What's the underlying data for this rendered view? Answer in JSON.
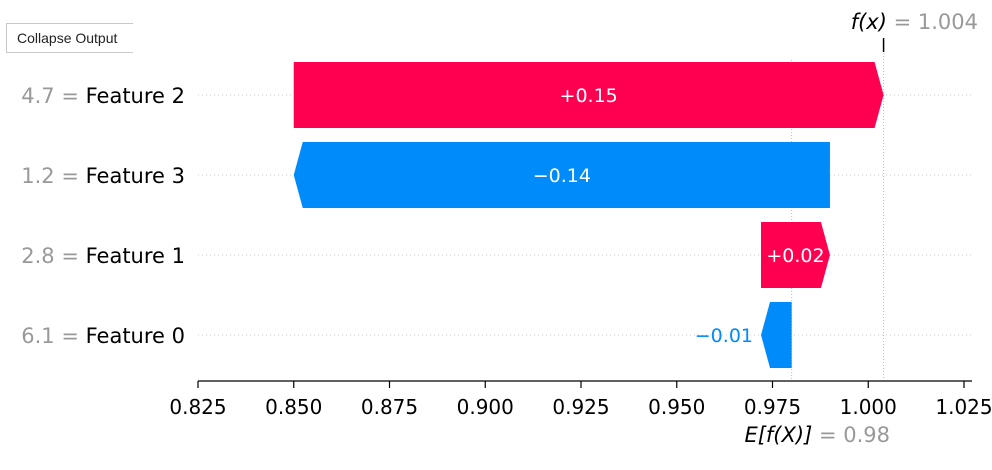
{
  "controls": {
    "collapse_label": "Collapse Output"
  },
  "colors": {
    "positive": "#ff0051",
    "negative": "#008bfb",
    "muted": "#999999",
    "text": "#000000"
  },
  "chart_data": {
    "type": "waterfall",
    "fx_symbol": "f(x)",
    "fx_value": "1.004",
    "ex_symbol": "E[f(X)]",
    "ex_value": "0.98",
    "base_value": 0.98,
    "output_value": 1.004,
    "xlim": [
      0.82,
      1.03
    ],
    "ticks": [
      {
        "value": 0.825,
        "label": "0.825"
      },
      {
        "value": 0.85,
        "label": "0.850"
      },
      {
        "value": 0.875,
        "label": "0.875"
      },
      {
        "value": 0.9,
        "label": "0.900"
      },
      {
        "value": 0.925,
        "label": "0.925"
      },
      {
        "value": 0.95,
        "label": "0.950"
      },
      {
        "value": 0.975,
        "label": "0.975"
      },
      {
        "value": 1.0,
        "label": "1.000"
      },
      {
        "value": 1.025,
        "label": "1.025"
      }
    ],
    "features": [
      {
        "feature": "Feature 2",
        "value_label": "4.7",
        "contribution": 0.15,
        "label": "+0.15",
        "start": 0.85,
        "end": 1.004
      },
      {
        "feature": "Feature 3",
        "value_label": "1.2",
        "contribution": -0.14,
        "label": "−0.14",
        "start": 0.99,
        "end": 0.85
      },
      {
        "feature": "Feature 1",
        "value_label": "2.8",
        "contribution": 0.02,
        "label": "+0.02",
        "start": 0.972,
        "end": 0.99
      },
      {
        "feature": "Feature 0",
        "value_label": "6.1",
        "contribution": -0.01,
        "label": "−0.01",
        "start": 0.98,
        "end": 0.972
      }
    ]
  }
}
